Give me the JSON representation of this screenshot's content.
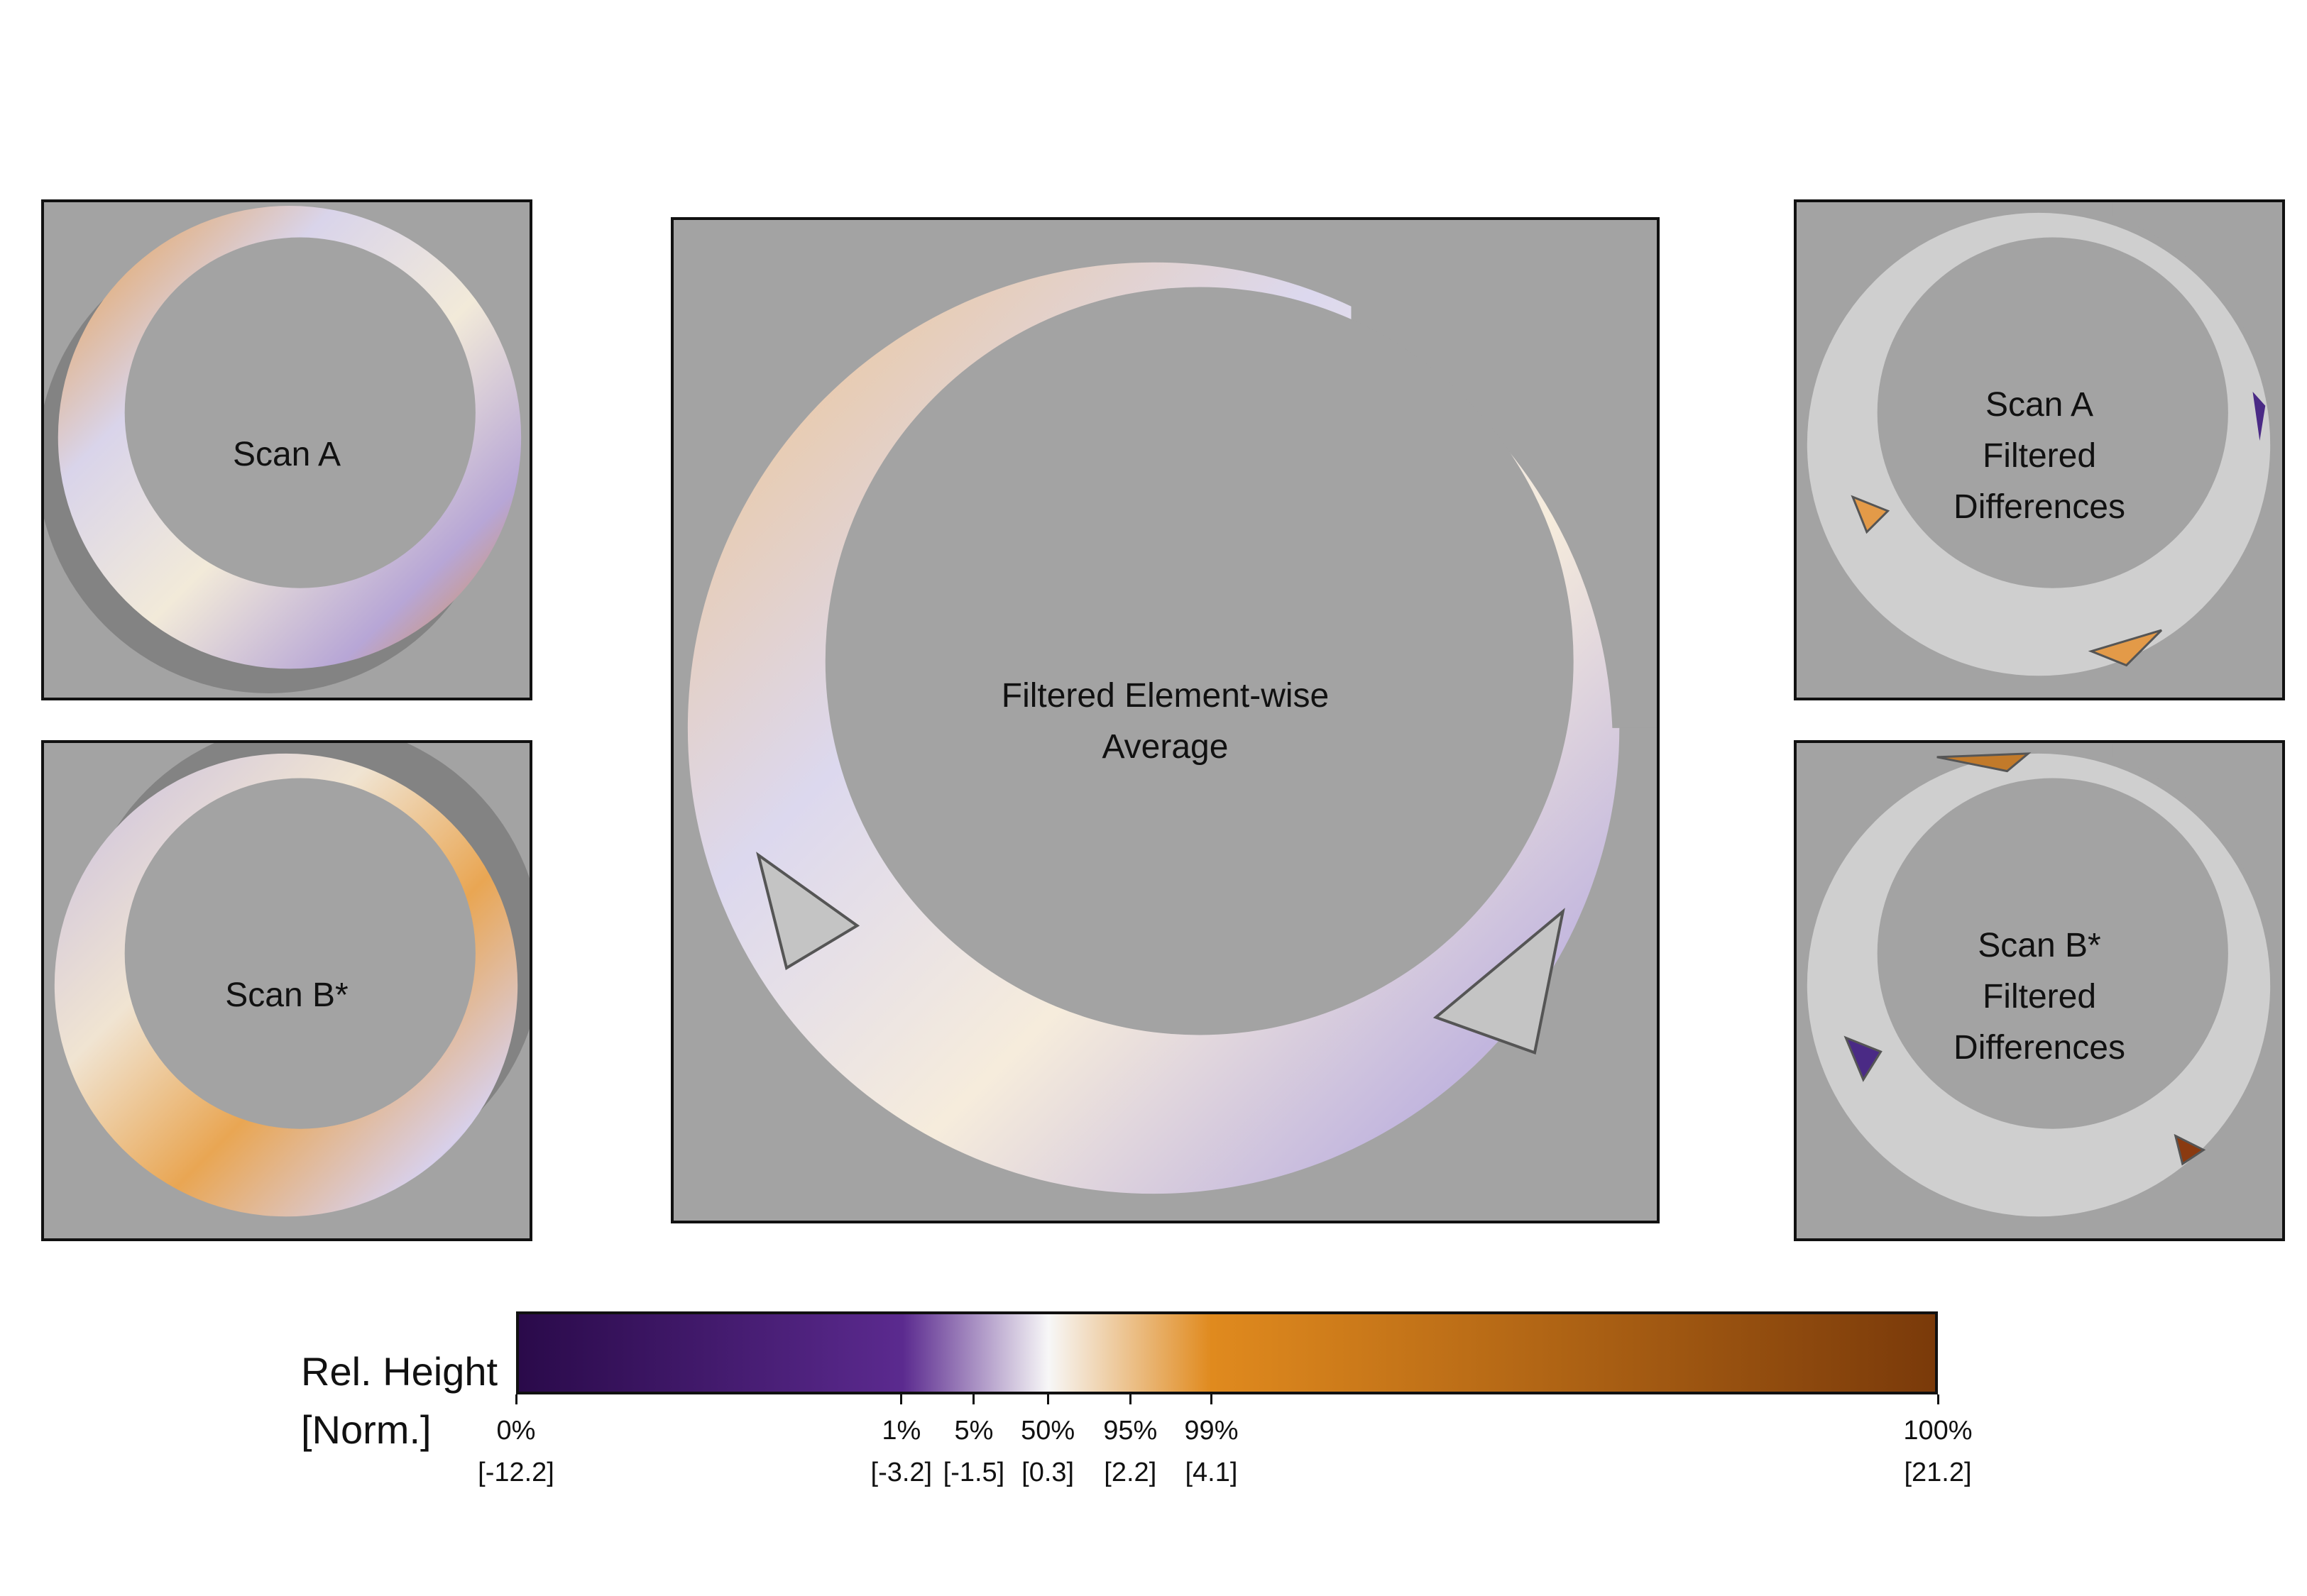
{
  "panels": {
    "scan_a": {
      "label": "Scan A"
    },
    "scan_b": {
      "label": "Scan B*"
    },
    "average": {
      "label": "Filtered Element-wise\nAverage"
    },
    "scan_a_diff": {
      "label": "Scan A\nFiltered\nDifferences"
    },
    "scan_b_diff": {
      "label": "Scan B*\nFiltered\nDifferences"
    }
  },
  "colorbar": {
    "title_line1": "Rel. Height",
    "title_line2": "[Norm.]",
    "ticks": [
      {
        "pct": "0%",
        "value": "[-12.2]",
        "position": 0.0
      },
      {
        "pct": "1%",
        "value": "[-3.2]",
        "position": 0.271
      },
      {
        "pct": "5%",
        "value": "[-1.5]",
        "position": 0.322
      },
      {
        "pct": "50%",
        "value": "[0.3]",
        "position": 0.374
      },
      {
        "pct": "95%",
        "value": "[2.2]",
        "position": 0.432
      },
      {
        "pct": "99%",
        "value": "[4.1]",
        "position": 0.489
      },
      {
        "pct": "100%",
        "value": "[21.2]",
        "position": 1.0
      }
    ],
    "colors": {
      "min": "#2a0a4a",
      "low": "#5b2a8f",
      "mid": "#f7f7f7",
      "high": "#e08a1e",
      "max": "#7a3a0a"
    }
  },
  "background_color": "#a3a3a3"
}
